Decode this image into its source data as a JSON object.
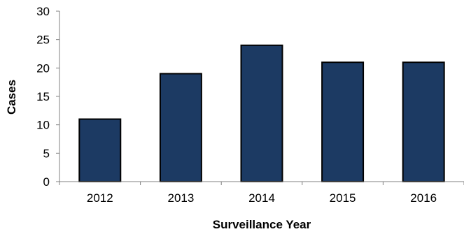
{
  "chart_data": {
    "type": "bar",
    "title": "",
    "xlabel": "Surveillance Year",
    "ylabel": "Cases",
    "categories": [
      "2012",
      "2013",
      "2014",
      "2015",
      "2016"
    ],
    "values": [
      11,
      19,
      24,
      21,
      21
    ],
    "ylim": [
      0,
      30
    ],
    "yticks": [
      "0",
      "5",
      "10",
      "15",
      "20",
      "25",
      "30"
    ],
    "grid": false,
    "legend": "none",
    "colors": {
      "bar_fill": "#1c3a63",
      "bar_stroke": "#000000",
      "axis": "#808080"
    }
  }
}
